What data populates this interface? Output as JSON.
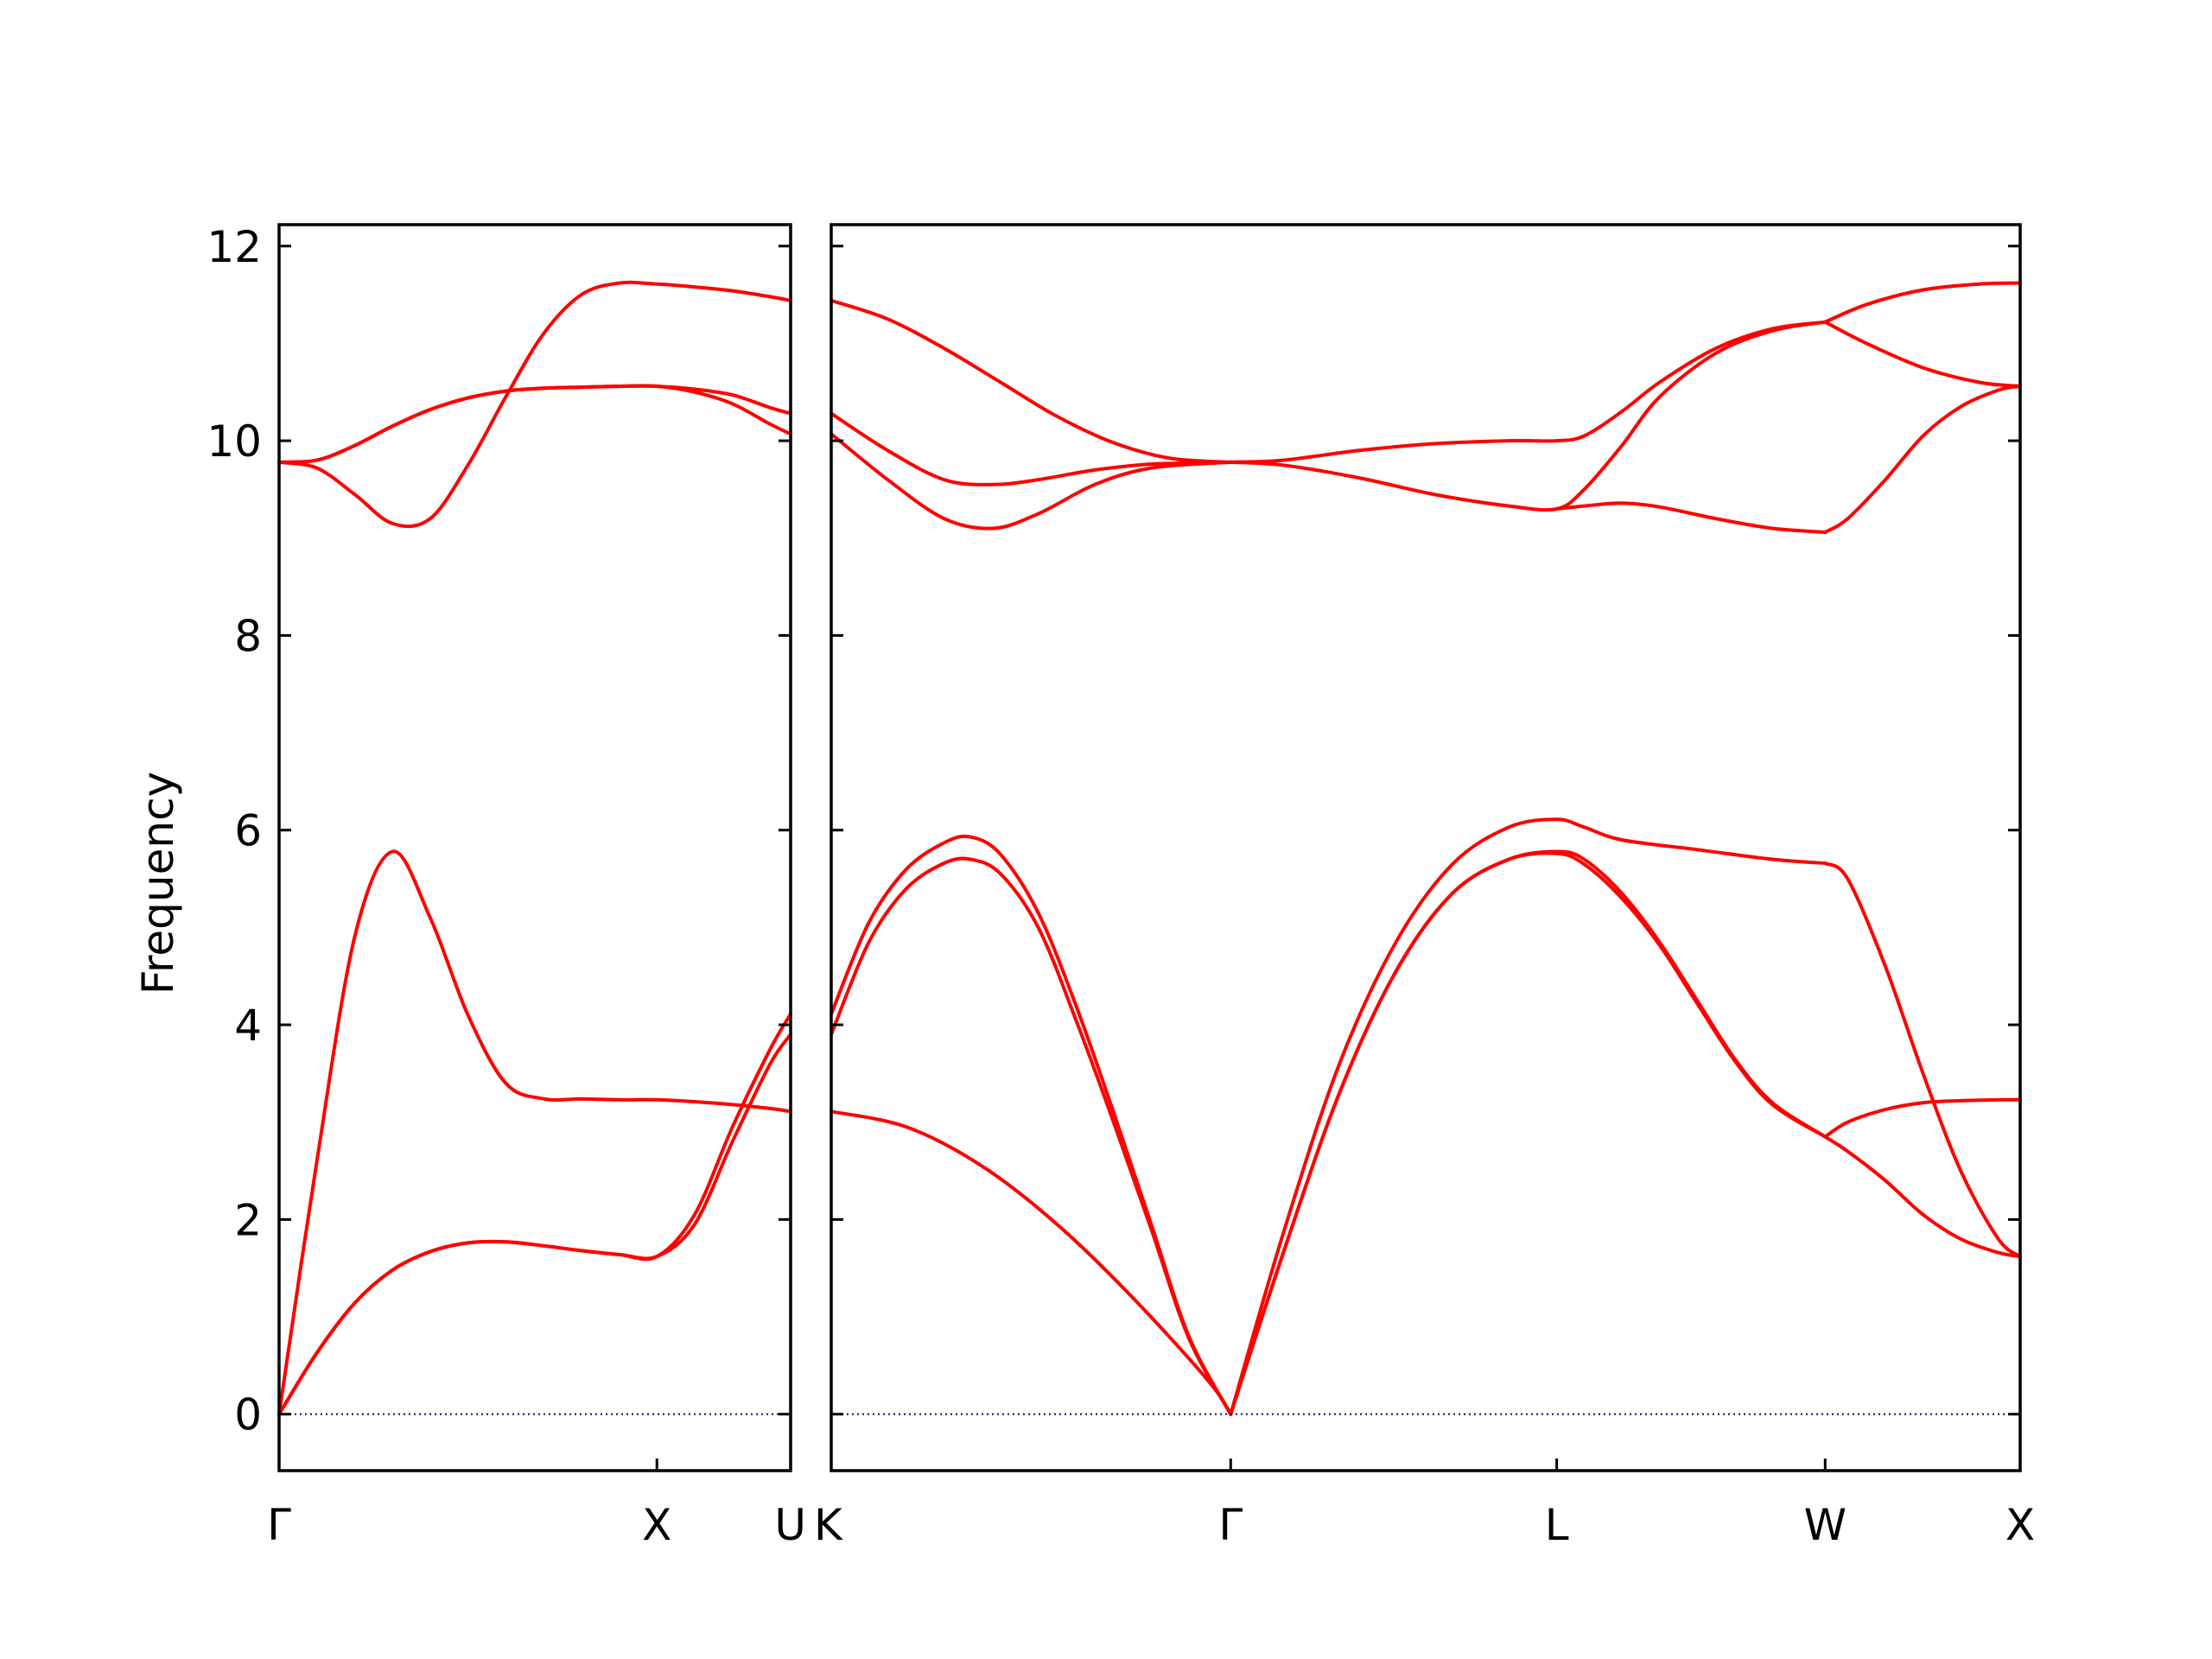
{
  "chart_data": {
    "type": "line",
    "ylabel": "Frequency",
    "ylim": [
      -0.58,
      12.22
    ],
    "yticks": [
      0,
      2,
      4,
      6,
      8,
      10,
      12
    ],
    "line_color": "#ff0000",
    "zero_line_color": "#0000aa",
    "grid": false,
    "panels": [
      {
        "xlim": [
          0,
          1.354
        ],
        "xticks": [
          {
            "x": 0,
            "label": "Γ"
          },
          {
            "x": 1.0,
            "label": "X"
          },
          {
            "x": 1.354,
            "label": "U"
          }
        ],
        "series": [
          {
            "x": [
              0,
              0.1,
              0.2,
              0.3,
              0.4,
              0.5,
              0.6,
              0.7,
              0.8,
              0.9,
              1.0,
              1.1,
              1.2,
              1.3,
              1.354
            ],
            "y": [
              0,
              2.6,
              4.9,
              5.78,
              5.1,
              4.1,
              3.4,
              3.24,
              3.24,
              3.23,
              3.23,
              3.21,
              3.18,
              3.14,
              3.11
            ]
          },
          {
            "x": [
              0,
              0.1,
              0.2,
              0.3,
              0.4,
              0.5,
              0.6,
              0.7,
              0.8,
              0.9,
              1.0,
              1.1,
              1.2,
              1.3,
              1.354
            ],
            "y": [
              0,
              0.63,
              1.14,
              1.48,
              1.67,
              1.76,
              1.77,
              1.73,
              1.68,
              1.64,
              1.62,
              2.05,
              2.95,
              3.75,
              4.11
            ]
          },
          {
            "x": [
              0,
              0.1,
              0.2,
              0.3,
              0.4,
              0.5,
              0.6,
              0.7,
              0.8,
              0.9,
              1.0,
              1.1,
              1.2,
              1.3,
              1.354
            ],
            "y": [
              0,
              0.63,
              1.14,
              1.48,
              1.67,
              1.76,
              1.77,
              1.73,
              1.68,
              1.64,
              1.62,
              1.95,
              2.8,
              3.6,
              3.9
            ]
          },
          {
            "x": [
              0,
              0.1,
              0.2,
              0.3,
              0.4,
              0.5,
              0.6,
              0.7,
              0.8,
              0.9,
              1.0,
              1.1,
              1.2,
              1.3,
              1.354
            ],
            "y": [
              9.78,
              9.72,
              9.45,
              9.15,
              9.2,
              9.75,
              10.45,
              11.1,
              11.5,
              11.62,
              11.61,
              11.58,
              11.54,
              11.48,
              11.44
            ]
          },
          {
            "x": [
              0,
              0.1,
              0.2,
              0.3,
              0.4,
              0.5,
              0.6,
              0.7,
              0.8,
              0.9,
              1.0,
              1.1,
              1.2,
              1.3,
              1.354
            ],
            "y": [
              9.78,
              9.8,
              9.95,
              10.15,
              10.32,
              10.44,
              10.51,
              10.54,
              10.55,
              10.56,
              10.56,
              10.53,
              10.47,
              10.34,
              10.28
            ]
          },
          {
            "x": [
              0,
              0.1,
              0.2,
              0.3,
              0.4,
              0.5,
              0.6,
              0.7,
              0.8,
              0.9,
              1.0,
              1.1,
              1.2,
              1.3,
              1.354
            ],
            "y": [
              9.78,
              9.8,
              9.95,
              10.15,
              10.32,
              10.44,
              10.51,
              10.54,
              10.55,
              10.56,
              10.56,
              10.5,
              10.38,
              10.17,
              10.07
            ]
          },
          {
            "x": [
              0,
              1.354
            ],
            "y": [
              0,
              0
            ],
            "zero_line": true
          }
        ]
      },
      {
        "xlim": [
          0,
          3.158
        ],
        "xticks": [
          {
            "x": 0,
            "label": "K"
          },
          {
            "x": 1.061,
            "label": "Γ"
          },
          {
            "x": 1.927,
            "label": "L"
          },
          {
            "x": 2.64,
            "label": "W"
          },
          {
            "x": 3.158,
            "label": "X"
          }
        ],
        "series": [
          {
            "x": [
              0,
              0.2,
              0.4,
              0.6,
              0.8,
              1.0,
              1.061
            ],
            "y": [
              3.11,
              2.95,
              2.55,
              1.95,
              1.2,
              0.35,
              0
            ]
          },
          {
            "x": [
              0,
              0.1,
              0.2,
              0.3,
              0.37,
              0.45,
              0.55,
              0.65,
              0.75,
              0.85,
              0.95,
              1.061
            ],
            "y": [
              4.11,
              5.05,
              5.6,
              5.87,
              5.93,
              5.75,
              5.15,
              4.2,
              3.1,
              1.95,
              0.8,
              0
            ]
          },
          {
            "x": [
              0,
              0.1,
              0.2,
              0.3,
              0.37,
              0.45,
              0.55,
              0.65,
              0.75,
              0.85,
              0.95,
              1.061
            ],
            "y": [
              3.9,
              4.85,
              5.4,
              5.66,
              5.7,
              5.55,
              5.0,
              4.05,
              3.0,
              1.9,
              0.78,
              0
            ]
          },
          {
            "x": [
              1.061,
              1.2,
              1.35,
              1.5,
              1.65,
              1.8,
              1.927,
              2.0,
              2.1,
              2.3,
              2.5,
              2.64
            ],
            "y": [
              0,
              1.85,
              3.6,
              4.85,
              5.65,
              6.03,
              6.11,
              6.03,
              5.9,
              5.8,
              5.7,
              5.66
            ]
          },
          {
            "x": [
              1.061,
              1.2,
              1.35,
              1.5,
              1.65,
              1.8,
              1.927,
              2.0,
              2.1,
              2.2,
              2.3,
              2.4,
              2.5,
              2.64
            ],
            "y": [
              0,
              1.65,
              3.3,
              4.55,
              5.35,
              5.7,
              5.78,
              5.7,
              5.35,
              4.85,
              4.25,
              3.65,
              3.2,
              2.85
            ]
          },
          {
            "x": [
              1.061,
              1.2,
              1.35,
              1.5,
              1.65,
              1.8,
              1.927,
              2.0,
              2.1,
              2.2,
              2.3,
              2.4,
              2.5,
              2.64
            ],
            "y": [
              0,
              1.65,
              3.3,
              4.55,
              5.35,
              5.7,
              5.76,
              5.65,
              5.3,
              4.82,
              4.22,
              3.63,
              3.18,
              2.85
            ]
          },
          {
            "x": [
              2.64,
              2.7,
              2.8,
              2.9,
              3.0,
              3.1,
              3.158
            ],
            "y": [
              5.66,
              5.5,
              4.6,
              3.5,
              2.5,
              1.8,
              1.62
            ]
          },
          {
            "x": [
              2.64,
              2.7,
              2.8,
              2.9,
              3.0,
              3.1,
              3.158
            ],
            "y": [
              2.85,
              2.7,
              2.4,
              2.05,
              1.8,
              1.66,
              1.62
            ]
          },
          {
            "x": [
              2.64,
              2.7,
              2.8,
              2.9,
              3.0,
              3.1,
              3.158
            ],
            "y": [
              2.85,
              3.0,
              3.13,
              3.2,
              3.22,
              3.23,
              3.23
            ]
          },
          {
            "x": [
              0,
              0.15,
              0.3,
              0.45,
              0.6,
              0.75,
              0.9,
              1.061
            ],
            "y": [
              11.44,
              11.25,
              10.95,
              10.6,
              10.25,
              9.98,
              9.82,
              9.78
            ]
          },
          {
            "x": [
              0,
              0.15,
              0.3,
              0.43,
              0.55,
              0.7,
              0.85,
              1.061
            ],
            "y": [
              10.28,
              9.9,
              9.6,
              9.55,
              9.6,
              9.7,
              9.76,
              9.78
            ]
          },
          {
            "x": [
              0,
              0.15,
              0.3,
              0.43,
              0.55,
              0.7,
              0.85,
              1.061
            ],
            "y": [
              10.07,
              9.6,
              9.2,
              9.1,
              9.25,
              9.55,
              9.72,
              9.78
            ]
          },
          {
            "x": [
              1.061,
              1.2,
              1.4,
              1.6,
              1.8,
              1.927,
              2.0,
              2.1,
              2.2,
              2.35,
              2.5,
              2.64
            ],
            "y": [
              9.78,
              9.8,
              9.9,
              9.97,
              10.0,
              10.0,
              10.05,
              10.3,
              10.6,
              10.95,
              11.15,
              11.22
            ]
          },
          {
            "x": [
              1.061,
              1.2,
              1.4,
              1.6,
              1.8,
              1.927,
              2.0,
              2.1,
              2.2,
              2.35,
              2.5,
              2.64
            ],
            "y": [
              9.78,
              9.75,
              9.62,
              9.45,
              9.33,
              9.3,
              9.5,
              9.95,
              10.45,
              10.9,
              11.13,
              11.22
            ]
          },
          {
            "x": [
              1.927,
              2.0,
              2.1,
              2.2,
              2.35,
              2.5,
              2.64
            ],
            "y": [
              9.3,
              9.33,
              9.36,
              9.32,
              9.2,
              9.1,
              9.06
            ]
          },
          {
            "x": [
              2.64,
              2.75,
              2.9,
              3.05,
              3.158
            ],
            "y": [
              11.22,
              11.4,
              11.55,
              11.61,
              11.62
            ]
          },
          {
            "x": [
              2.64,
              2.75,
              2.9,
              3.05,
              3.158
            ],
            "y": [
              11.22,
              11.0,
              10.75,
              10.6,
              10.56
            ]
          },
          {
            "x": [
              2.64,
              2.7,
              2.8,
              2.9,
              3.0,
              3.1,
              3.158
            ],
            "y": [
              9.06,
              9.2,
              9.6,
              10.05,
              10.35,
              10.52,
              10.56
            ]
          },
          {
            "x": [
              0,
              3.158
            ],
            "y": [
              0,
              0
            ],
            "zero_line": true
          }
        ]
      }
    ]
  }
}
